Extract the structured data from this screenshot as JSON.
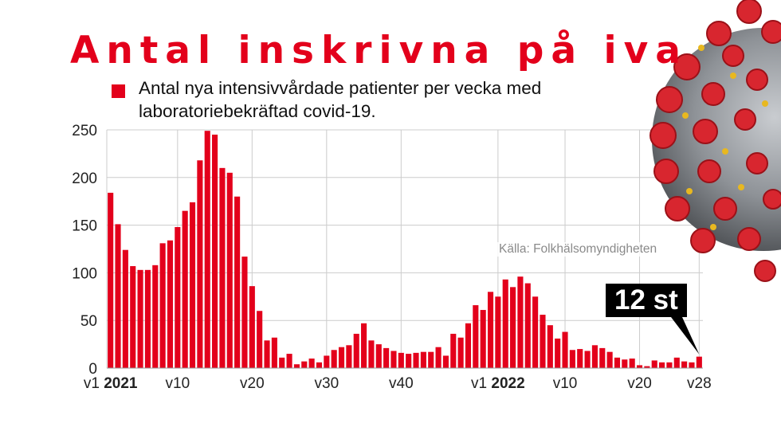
{
  "title": "Antal inskrivna på iva",
  "subtitle": "Antal nya intensivvårdade patienter per vecka med laboratoriebekräftad covid-19.",
  "source": "Källa: Folkhälsomyndigheten",
  "callout": "12 st",
  "colors": {
    "accent": "#e3001b",
    "grid": "#cccccc",
    "text": "#222222"
  },
  "decoration": {
    "virus_image": "coronavirus-illustration"
  },
  "chart_data": {
    "type": "bar",
    "series": [
      {
        "values": [
          184,
          151,
          124,
          107,
          103,
          103,
          108,
          131,
          134,
          148,
          165,
          174,
          218,
          249,
          245,
          210,
          205,
          180,
          117,
          86,
          60,
          29,
          32,
          11,
          15,
          4,
          7,
          10,
          6,
          13,
          19,
          22,
          24,
          36,
          47,
          29,
          25,
          21,
          18,
          16,
          15,
          16,
          17,
          17,
          22,
          13,
          36,
          32,
          47,
          66,
          61,
          80,
          75,
          93,
          85,
          96,
          89,
          75,
          56,
          45,
          31,
          38,
          19,
          20,
          18,
          24,
          21,
          17,
          11,
          9,
          10,
          3,
          2,
          8,
          6,
          6,
          11,
          7,
          6,
          12
        ]
      }
    ],
    "tick_labels": [
      {
        "index": 0,
        "prefix": "v1 ",
        "bold": "2021"
      },
      {
        "index": 9,
        "prefix": "v10",
        "bold": ""
      },
      {
        "index": 19,
        "prefix": "v20",
        "bold": ""
      },
      {
        "index": 29,
        "prefix": "v30",
        "bold": ""
      },
      {
        "index": 39,
        "prefix": "v40",
        "bold": ""
      },
      {
        "index": 52,
        "prefix": "v1 ",
        "bold": "2022"
      },
      {
        "index": 61,
        "prefix": "v10",
        "bold": ""
      },
      {
        "index": 71,
        "prefix": "v20",
        "bold": ""
      },
      {
        "index": 79,
        "prefix": "v28",
        "bold": ""
      }
    ],
    "y_ticks": [
      0,
      50,
      100,
      150,
      200,
      250
    ],
    "ylim": [
      0,
      250
    ],
    "grid": true,
    "xlabel": "",
    "ylabel": ""
  }
}
